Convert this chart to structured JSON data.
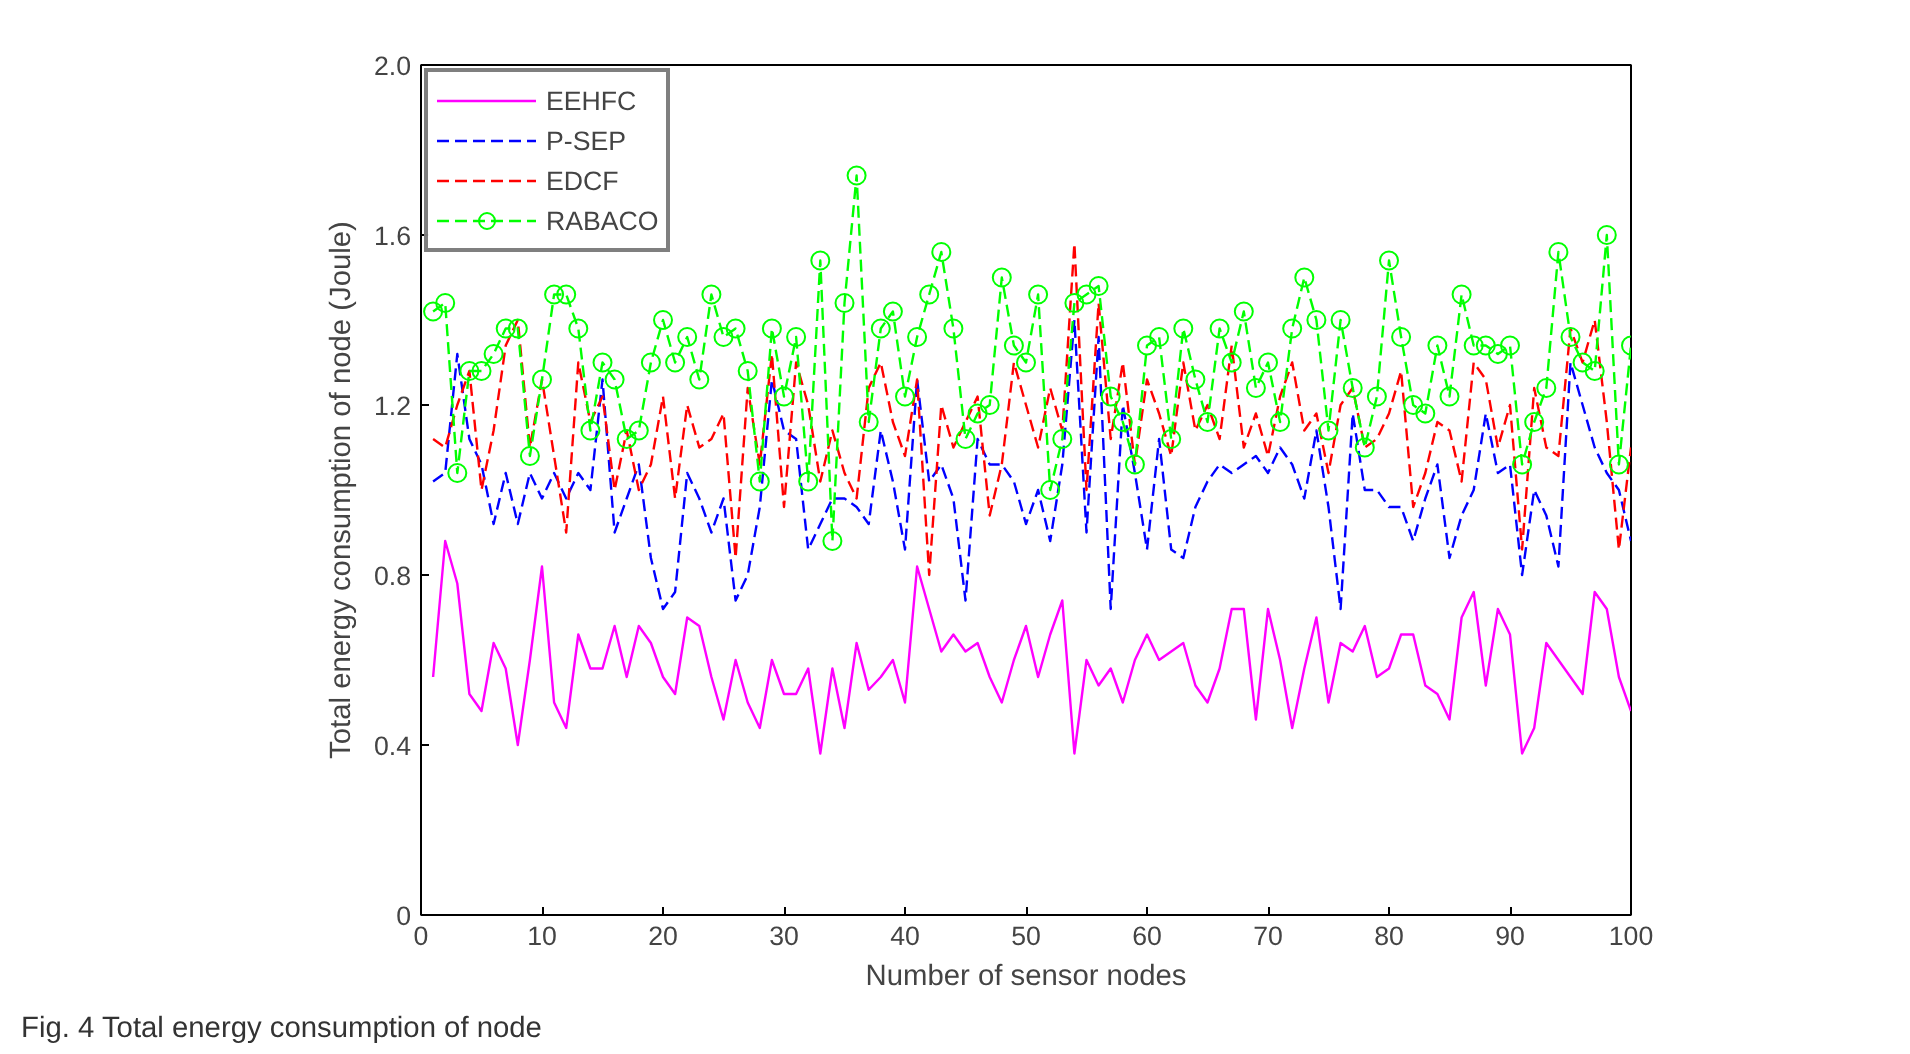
{
  "chart_data": {
    "type": "line",
    "xlabel": "Number of sensor nodes",
    "ylabel": "Total energy consumption of node (Joule)",
    "annotations": [
      "Fig. 4  Total energy consumption of node"
    ],
    "x": [
      1,
      2,
      3,
      4,
      5,
      6,
      7,
      8,
      9,
      10,
      11,
      12,
      13,
      14,
      15,
      16,
      17,
      18,
      19,
      20,
      21,
      22,
      23,
      24,
      25,
      26,
      27,
      28,
      29,
      30,
      31,
      32,
      33,
      34,
      35,
      36,
      37,
      38,
      39,
      40,
      41,
      42,
      43,
      44,
      45,
      46,
      47,
      48,
      49,
      50,
      51,
      52,
      53,
      54,
      55,
      56,
      57,
      58,
      59,
      60,
      61,
      62,
      63,
      64,
      65,
      66,
      67,
      68,
      69,
      70,
      71,
      72,
      73,
      74,
      75,
      76,
      77,
      78,
      79,
      80,
      81,
      82,
      83,
      84,
      85,
      86,
      87,
      88,
      89,
      90,
      91,
      92,
      93,
      94,
      95,
      96,
      97,
      98,
      99,
      100
    ],
    "series": [
      {
        "name": "EEHFC",
        "color": "#ff00ff",
        "line_style": "solid",
        "marker": "none",
        "values": [
          0.56,
          0.88,
          0.78,
          0.52,
          0.48,
          0.64,
          0.58,
          0.4,
          0.6,
          0.82,
          0.5,
          0.44,
          0.66,
          0.58,
          0.58,
          0.68,
          0.56,
          0.68,
          0.64,
          0.56,
          0.52,
          0.7,
          0.68,
          0.56,
          0.46,
          0.6,
          0.5,
          0.44,
          0.6,
          0.52,
          0.52,
          0.58,
          0.38,
          0.58,
          0.44,
          0.64,
          0.53,
          0.56,
          0.6,
          0.5,
          0.82,
          0.72,
          0.62,
          0.66,
          0.62,
          0.64,
          0.56,
          0.5,
          0.6,
          0.68,
          0.56,
          0.66,
          0.74,
          0.38,
          0.6,
          0.54,
          0.58,
          0.5,
          0.6,
          0.66,
          0.6,
          0.62,
          0.64,
          0.54,
          0.5,
          0.58,
          0.72,
          0.72,
          0.46,
          0.72,
          0.6,
          0.44,
          0.58,
          0.7,
          0.5,
          0.64,
          0.62,
          0.68,
          0.56,
          0.58,
          0.66,
          0.66,
          0.54,
          0.52,
          0.46,
          0.7,
          0.76,
          0.54,
          0.72,
          0.66,
          0.38,
          0.44,
          0.64,
          0.6,
          0.56,
          0.52,
          0.76,
          0.72,
          0.56,
          0.48
        ]
      },
      {
        "name": "P-SEP",
        "color": "#0000ff",
        "line_style": "dashed",
        "marker": "none",
        "values": [
          1.02,
          1.04,
          1.32,
          1.12,
          1.06,
          0.92,
          1.04,
          0.92,
          1.04,
          0.98,
          1.04,
          0.98,
          1.04,
          1.0,
          1.26,
          0.9,
          0.98,
          1.06,
          0.84,
          0.72,
          0.76,
          1.04,
          0.98,
          0.9,
          0.98,
          0.74,
          0.8,
          0.96,
          1.26,
          1.14,
          1.12,
          0.86,
          0.92,
          0.98,
          0.98,
          0.96,
          0.92,
          1.14,
          1.02,
          0.86,
          1.26,
          1.02,
          1.06,
          0.98,
          0.74,
          1.12,
          1.06,
          1.06,
          1.02,
          0.92,
          1.0,
          0.88,
          1.06,
          1.4,
          0.9,
          1.36,
          0.72,
          1.2,
          1.04,
          0.86,
          1.12,
          0.86,
          0.84,
          0.96,
          1.02,
          1.06,
          1.04,
          1.06,
          1.08,
          1.04,
          1.1,
          1.06,
          0.98,
          1.14,
          0.96,
          0.72,
          1.18,
          1.0,
          1.0,
          0.96,
          0.96,
          0.88,
          0.98,
          1.06,
          0.84,
          0.94,
          1.0,
          1.18,
          1.04,
          1.06,
          0.8,
          1.0,
          0.94,
          0.82,
          1.3,
          1.2,
          1.1,
          1.04,
          1.0,
          0.88
        ]
      },
      {
        "name": "EDCF",
        "color": "#ff0000",
        "line_style": "dashed",
        "marker": "none",
        "values": [
          1.12,
          1.1,
          1.2,
          1.28,
          1.0,
          1.14,
          1.34,
          1.4,
          1.1,
          1.26,
          1.08,
          0.9,
          1.3,
          1.16,
          1.22,
          1.0,
          1.14,
          1.0,
          1.06,
          1.22,
          0.98,
          1.2,
          1.1,
          1.12,
          1.18,
          0.84,
          1.24,
          1.06,
          1.32,
          0.96,
          1.3,
          1.2,
          1.02,
          1.14,
          1.04,
          0.98,
          1.24,
          1.3,
          1.16,
          1.08,
          1.26,
          0.8,
          1.2,
          1.1,
          1.16,
          1.22,
          0.94,
          1.06,
          1.3,
          1.2,
          1.1,
          1.24,
          1.14,
          1.58,
          1.0,
          1.44,
          1.12,
          1.3,
          1.06,
          1.26,
          1.18,
          1.08,
          1.3,
          1.14,
          1.2,
          1.12,
          1.34,
          1.1,
          1.18,
          1.08,
          1.22,
          1.3,
          1.14,
          1.18,
          1.04,
          1.2,
          1.24,
          1.1,
          1.12,
          1.18,
          1.28,
          0.96,
          1.04,
          1.16,
          1.14,
          1.02,
          1.3,
          1.26,
          1.1,
          1.2,
          0.86,
          1.24,
          1.1,
          1.08,
          1.38,
          1.3,
          1.4,
          1.16,
          0.86,
          1.1
        ]
      },
      {
        "name": "RABACO",
        "color": "#00ff00",
        "line_style": "dashed",
        "marker": "circle",
        "values": [
          1.42,
          1.44,
          1.04,
          1.28,
          1.28,
          1.32,
          1.38,
          1.38,
          1.08,
          1.26,
          1.46,
          1.46,
          1.38,
          1.14,
          1.3,
          1.26,
          1.12,
          1.14,
          1.3,
          1.4,
          1.3,
          1.36,
          1.26,
          1.46,
          1.36,
          1.38,
          1.28,
          1.02,
          1.38,
          1.22,
          1.36,
          1.02,
          1.54,
          0.88,
          1.44,
          1.74,
          1.16,
          1.38,
          1.42,
          1.22,
          1.36,
          1.46,
          1.56,
          1.38,
          1.12,
          1.18,
          1.2,
          1.5,
          1.34,
          1.3,
          1.46,
          1.0,
          1.12,
          1.44,
          1.46,
          1.48,
          1.22,
          1.16,
          1.06,
          1.34,
          1.36,
          1.12,
          1.38,
          1.26,
          1.16,
          1.38,
          1.3,
          1.42,
          1.24,
          1.3,
          1.16,
          1.38,
          1.5,
          1.4,
          1.14,
          1.4,
          1.24,
          1.1,
          1.22,
          1.54,
          1.36,
          1.2,
          1.18,
          1.34,
          1.22,
          1.46,
          1.34,
          1.34,
          1.32,
          1.34,
          1.06,
          1.16,
          1.24,
          1.56,
          1.36,
          1.3,
          1.28,
          1.6,
          1.06,
          1.34
        ]
      }
    ],
    "xlim": [
      0,
      100
    ],
    "xticks": [
      0,
      10,
      20,
      30,
      40,
      50,
      60,
      70,
      80,
      90,
      100
    ],
    "ylim": [
      0,
      2
    ],
    "yticks": [
      0,
      0.4,
      0.8,
      1.2,
      1.6,
      {
        "value": 2,
        "label": "2.0"
      }
    ],
    "grid": false,
    "legend": "top left"
  }
}
